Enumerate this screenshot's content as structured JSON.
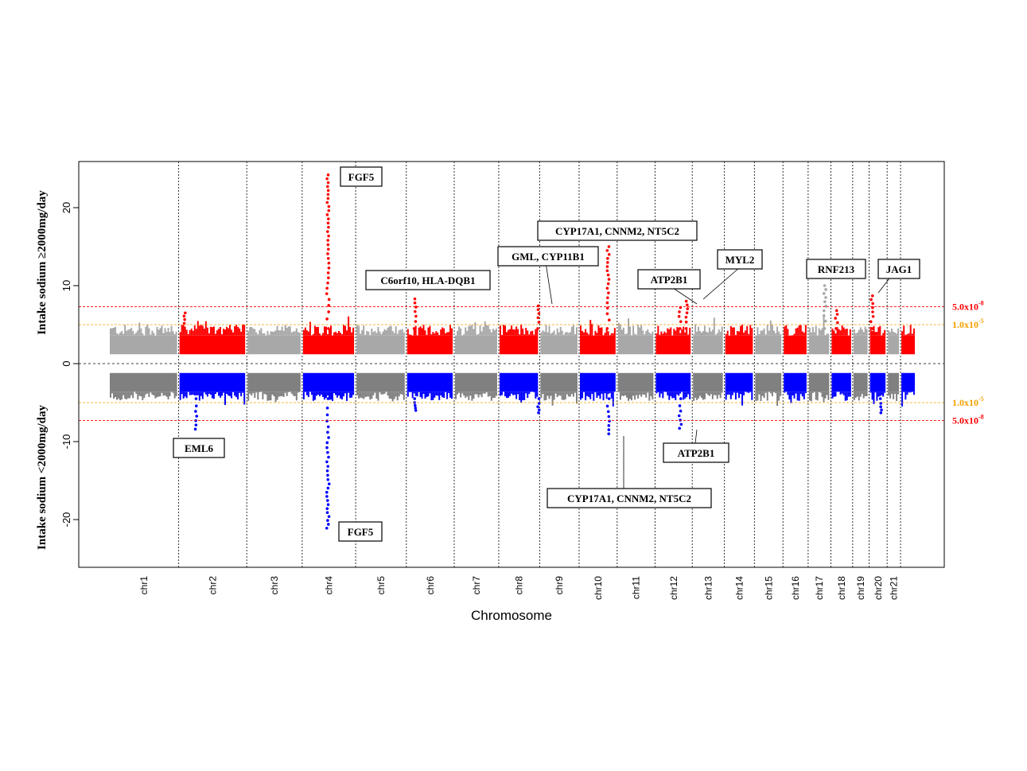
{
  "chart_data": {
    "type": "scatter",
    "subtype": "miami-plot",
    "xlabel": "Chromosome",
    "ylabel_top": "Intake sodium ≥2000mg/day",
    "ylabel_bottom": "Intake sodium <2000mg/day",
    "ylim": [
      -26,
      26
    ],
    "yticks": [
      20,
      10,
      0,
      -10,
      -20
    ],
    "chromosomes": [
      {
        "name": "chr1",
        "start": 0,
        "end": 249
      },
      {
        "name": "chr2",
        "start": 249,
        "end": 492
      },
      {
        "name": "chr3",
        "start": 492,
        "end": 690
      },
      {
        "name": "chr4",
        "start": 690,
        "end": 881
      },
      {
        "name": "chr5",
        "start": 881,
        "end": 1062
      },
      {
        "name": "chr6",
        "start": 1062,
        "end": 1233
      },
      {
        "name": "chr7",
        "start": 1233,
        "end": 1392
      },
      {
        "name": "chr8",
        "start": 1392,
        "end": 1538
      },
      {
        "name": "chr9",
        "start": 1538,
        "end": 1679
      },
      {
        "name": "chr10",
        "start": 1679,
        "end": 1815
      },
      {
        "name": "chr11",
        "start": 1815,
        "end": 1950
      },
      {
        "name": "chr12",
        "start": 1950,
        "end": 2083
      },
      {
        "name": "chr13",
        "start": 2083,
        "end": 2198
      },
      {
        "name": "chr14",
        "start": 2198,
        "end": 2305
      },
      {
        "name": "chr15",
        "start": 2305,
        "end": 2407
      },
      {
        "name": "chr16",
        "start": 2407,
        "end": 2497
      },
      {
        "name": "chr17",
        "start": 2497,
        "end": 2578
      },
      {
        "name": "chr18",
        "start": 2578,
        "end": 2656
      },
      {
        "name": "chr19",
        "start": 2656,
        "end": 2715
      },
      {
        "name": "chr20",
        "start": 2715,
        "end": 2779
      },
      {
        "name": "chr21",
        "start": 2779,
        "end": 2827
      },
      {
        "name": "",
        "start": 2827,
        "end": 2878
      }
    ],
    "thresholds_top": [
      {
        "label": "5.0x10",
        "exp": "-8",
        "value": 7.3,
        "color": "#ff0000"
      },
      {
        "label": "1.0x10",
        "exp": "-5",
        "value": 5.0,
        "color": "#f5a000"
      }
    ],
    "thresholds_bottom": [
      {
        "label": "1.0x10",
        "exp": "-5",
        "value": -5.0,
        "color": "#f5a000"
      },
      {
        "label": "5.0x10",
        "exp": "-8",
        "value": -7.3,
        "color": "#ff0000"
      }
    ],
    "colors": {
      "top_odd": "#a8a8a8",
      "top_even": "#ff0000",
      "bottom_odd": "#808080",
      "bottom_even": "#0000ff"
    },
    "peaks_top": [
      {
        "chr": 2,
        "pos": 20,
        "y": 6.5
      },
      {
        "chr": 4,
        "pos": 92,
        "y": 24.2
      },
      {
        "chr": 6,
        "pos": 32,
        "y": 8.3
      },
      {
        "chr": 8,
        "pos": 143,
        "y": 7.4
      },
      {
        "chr": 10,
        "pos": 104,
        "y": 15.0
      },
      {
        "chr": 12,
        "pos": 90,
        "y": 7.2
      },
      {
        "chr": 12,
        "pos": 112,
        "y": 8.0
      },
      {
        "chr": 17,
        "pos": 60,
        "y": 10.0
      },
      {
        "chr": 18,
        "pos": 20,
        "y": 6.8
      },
      {
        "chr": 20,
        "pos": 10,
        "y": 8.7
      }
    ],
    "peaks_bottom": [
      {
        "chr": 2,
        "pos": 60,
        "y": -8.4
      },
      {
        "chr": 4,
        "pos": 92,
        "y": -21.1
      },
      {
        "chr": 6,
        "pos": 30,
        "y": -6.0
      },
      {
        "chr": 8,
        "pos": 143,
        "y": -6.3
      },
      {
        "chr": 10,
        "pos": 104,
        "y": -9.0
      },
      {
        "chr": 12,
        "pos": 90,
        "y": -8.3
      },
      {
        "chr": 20,
        "pos": 40,
        "y": -6.3
      }
    ],
    "annotations": [
      {
        "label": "FGF5",
        "side": "top"
      },
      {
        "label": "CYP17A1, CNNM2, NT5C2",
        "side": "top"
      },
      {
        "label": "GML, CYP11B1",
        "side": "top"
      },
      {
        "label": "C6orf10, HLA-DQB1",
        "side": "top"
      },
      {
        "label": "MYL2",
        "side": "top"
      },
      {
        "label": "ATP2B1",
        "side": "top"
      },
      {
        "label": "RNF213",
        "side": "top"
      },
      {
        "label": "JAG1",
        "side": "top"
      },
      {
        "label": "EML6",
        "side": "bottom"
      },
      {
        "label": "ATP2B1",
        "side": "bottom"
      },
      {
        "label": "CYP17A1, CNNM2, NT5C2",
        "side": "bottom"
      },
      {
        "label": "FGF5",
        "side": "bottom"
      }
    ]
  }
}
